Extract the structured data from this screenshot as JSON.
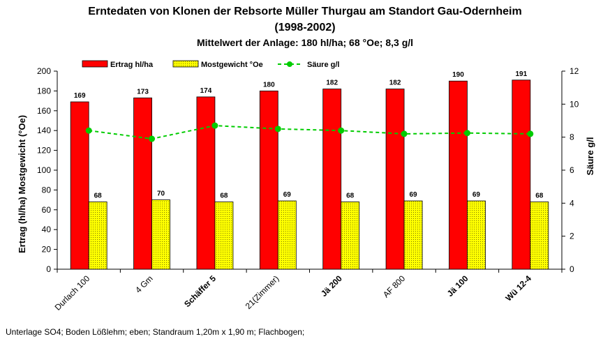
{
  "chart_data": {
    "type": "bar",
    "title": "Erntedaten von Klonen der Rebsorte Müller Thurgau am Standort Gau-Odernheim",
    "subtitle_years": "(1998-2002)",
    "subtitle": "Mittelwert der Anlage: 180 hl/ha; 68 °Oe; 8,3 g/l",
    "ylabel_left": "Ertrag (hl/ha)  Mostgewicht (°Oe)",
    "ylabel_right": "Säure g/l",
    "ylim_left": [
      0,
      200
    ],
    "ylim_right": [
      0,
      12
    ],
    "yticks_left": [
      "0",
      "20",
      "40",
      "60",
      "80",
      "100",
      "120",
      "140",
      "160",
      "180",
      "200"
    ],
    "yticks_right": [
      "0",
      "2",
      "4",
      "6",
      "8",
      "10",
      "12"
    ],
    "legend_position": "top",
    "categories": [
      "Durlach 100",
      "4 Gm",
      "Schäffer 5",
      "21(Zimmer)",
      "Jä 200",
      "AF 800",
      "Jä 100",
      "Wü 12-4"
    ],
    "categories_bold": [
      false,
      false,
      true,
      false,
      true,
      false,
      true,
      true
    ],
    "series": [
      {
        "name": "Ertrag hl/ha",
        "type": "bar",
        "axis": "left",
        "color": "#ff0000",
        "values": [
          169,
          173,
          174,
          180,
          182,
          182,
          190,
          191
        ]
      },
      {
        "name": "Mostgewicht °Oe",
        "type": "bar",
        "axis": "left",
        "color": "#ffff00",
        "values": [
          68,
          70,
          68,
          69,
          68,
          69,
          69,
          68
        ]
      },
      {
        "name": "Säure g/l",
        "type": "line",
        "axis": "right",
        "color": "#00cc00",
        "values": [
          8.4,
          7.9,
          8.7,
          8.5,
          8.4,
          8.2,
          8.25,
          8.2
        ]
      }
    ],
    "footnote": "Unterlage SO4; Boden Lößlehm; eben; Standraum 1,20m x 1,90 m; Flachbogen;"
  }
}
